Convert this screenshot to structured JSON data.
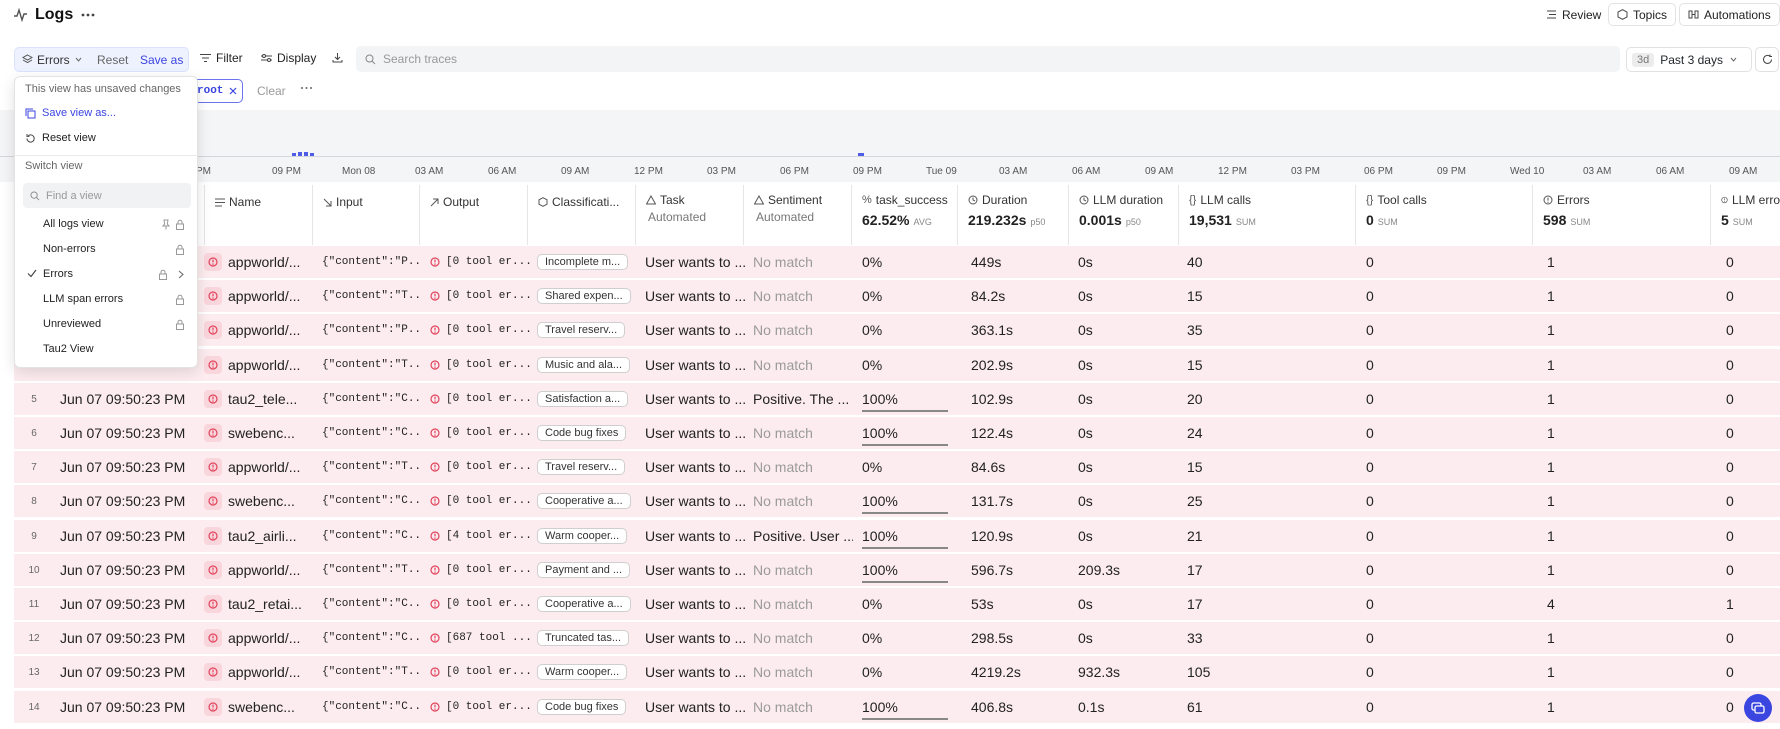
{
  "header": {
    "title": "Logs",
    "review": "Review",
    "topics": "Topics",
    "automations": "Automations"
  },
  "toolbar": {
    "view_name": "Errors",
    "reset": "Reset",
    "save_as": "Save as",
    "filter": "Filter",
    "display": "Display",
    "search_placeholder": "Search traces",
    "range_badge": "3d",
    "range_label": "Past 3 days"
  },
  "filter_row": {
    "chip": "root",
    "clear": "Clear"
  },
  "timeline": {
    "labels": [
      "PM",
      "09 PM",
      "Mon 08",
      "03 AM",
      "06 AM",
      "09 AM",
      "12 PM",
      "03 PM",
      "06 PM",
      "09 PM",
      "Tue 09",
      "03 AM",
      "06 AM",
      "09 AM",
      "12 PM",
      "03 PM",
      "06 PM",
      "09 PM",
      "Wed 10",
      "03 AM",
      "06 AM",
      "09 AM"
    ]
  },
  "views_menu": {
    "unsaved_note": "This view has unsaved changes",
    "save_view_as": "Save view as...",
    "reset_view": "Reset view",
    "switch_view": "Switch view",
    "find_placeholder": "Find a view",
    "views": [
      "All logs view",
      "Non-errors",
      "Errors",
      "LLM span errors",
      "Unreviewed",
      "Tau2 View"
    ]
  },
  "columns": {
    "name": "Name",
    "input": "Input",
    "output": "Output",
    "classification": "Classificati...",
    "task": "Task",
    "task_sub": "Automated",
    "sentiment": "Sentiment",
    "sentiment_sub": "Automated",
    "task_success": "task_success",
    "task_success_agg": "62.52%",
    "task_success_agg_unit": "AVG",
    "duration": "Duration",
    "duration_agg": "219.232s",
    "duration_agg_unit": "p50",
    "llm_duration": "LLM duration",
    "llm_duration_agg": "0.001s",
    "llm_duration_agg_unit": "p50",
    "llm_calls": "LLM calls",
    "llm_calls_agg": "19,531",
    "llm_calls_agg_unit": "SUM",
    "tool_calls": "Tool calls",
    "tool_calls_agg": "0",
    "tool_calls_agg_unit": "SUM",
    "errors": "Errors",
    "errors_agg": "598",
    "errors_agg_unit": "SUM",
    "llm_errors": "LLM erro",
    "llm_errors_agg": "5",
    "llm_errors_agg_unit": "SUM"
  },
  "rows": [
    {
      "idx": "",
      "time": "",
      "name": "appworld/...",
      "input": "{\"content\":\"P...",
      "output": "[0 tool er...",
      "cls": "Incomplete m...",
      "task": "User wants to ...",
      "sentiment": "No match",
      "success": "0%",
      "success_frac": 0,
      "duration": "449s",
      "llm_duration": "0s",
      "llm_calls": "40",
      "tool_calls": "0",
      "errors": "1",
      "llm_errors": "0"
    },
    {
      "idx": "",
      "time": "",
      "name": "appworld/...",
      "input": "{\"content\":\"T...",
      "output": "[0 tool er...",
      "cls": "Shared expen...",
      "task": "User wants to ...",
      "sentiment": "No match",
      "success": "0%",
      "success_frac": 0,
      "duration": "84.2s",
      "llm_duration": "0s",
      "llm_calls": "15",
      "tool_calls": "0",
      "errors": "1",
      "llm_errors": "0"
    },
    {
      "idx": "",
      "time": "",
      "name": "appworld/...",
      "input": "{\"content\":\"P...",
      "output": "[0 tool er...",
      "cls": "Travel reserv...",
      "task": "User wants to ...",
      "sentiment": "No match",
      "success": "0%",
      "success_frac": 0,
      "duration": "363.1s",
      "llm_duration": "0s",
      "llm_calls": "35",
      "tool_calls": "0",
      "errors": "1",
      "llm_errors": "0"
    },
    {
      "idx": "",
      "time": "",
      "name": "appworld/...",
      "input": "{\"content\":\"T...",
      "output": "[0 tool er...",
      "cls": "Music and ala...",
      "task": "User wants to ...",
      "sentiment": "No match",
      "success": "0%",
      "success_frac": 0,
      "duration": "202.9s",
      "llm_duration": "0s",
      "llm_calls": "15",
      "tool_calls": "0",
      "errors": "1",
      "llm_errors": "0"
    },
    {
      "idx": "5",
      "time": "Jun 07 09:50:23 PM",
      "name": "tau2_tele...",
      "input": "{\"content\":\"C...",
      "output": "[0 tool er...",
      "cls": "Satisfaction a...",
      "task": "User wants to ...",
      "sentiment": "Positive. The ...",
      "success": "100%",
      "success_frac": 1,
      "duration": "102.9s",
      "llm_duration": "0s",
      "llm_calls": "20",
      "tool_calls": "0",
      "errors": "1",
      "llm_errors": "0"
    },
    {
      "idx": "6",
      "time": "Jun 07 09:50:23 PM",
      "name": "swebenc...",
      "input": "{\"content\":\"C...",
      "output": "[0 tool er...",
      "cls": "Code bug fixes",
      "task": "User wants to ...",
      "sentiment": "No match",
      "success": "100%",
      "success_frac": 1,
      "duration": "122.4s",
      "llm_duration": "0s",
      "llm_calls": "24",
      "tool_calls": "0",
      "errors": "1",
      "llm_errors": "0"
    },
    {
      "idx": "7",
      "time": "Jun 07 09:50:23 PM",
      "name": "appworld/...",
      "input": "{\"content\":\"T...",
      "output": "[0 tool er...",
      "cls": "Travel reserv...",
      "task": "User wants to ...",
      "sentiment": "No match",
      "success": "0%",
      "success_frac": 0,
      "duration": "84.6s",
      "llm_duration": "0s",
      "llm_calls": "15",
      "tool_calls": "0",
      "errors": "1",
      "llm_errors": "0"
    },
    {
      "idx": "8",
      "time": "Jun 07 09:50:23 PM",
      "name": "swebenc...",
      "input": "{\"content\":\"C...",
      "output": "[0 tool er...",
      "cls": "Cooperative a...",
      "task": "User wants to ...",
      "sentiment": "No match",
      "success": "100%",
      "success_frac": 1,
      "duration": "131.7s",
      "llm_duration": "0s",
      "llm_calls": "25",
      "tool_calls": "0",
      "errors": "1",
      "llm_errors": "0"
    },
    {
      "idx": "9",
      "time": "Jun 07 09:50:23 PM",
      "name": "tau2_airli...",
      "input": "{\"content\":\"C...",
      "output": "[4 tool er...",
      "cls": "Warm cooper...",
      "task": "User wants to ...",
      "sentiment": "Positive. User ...",
      "success": "100%",
      "success_frac": 1,
      "duration": "120.9s",
      "llm_duration": "0s",
      "llm_calls": "21",
      "tool_calls": "0",
      "errors": "1",
      "llm_errors": "0"
    },
    {
      "idx": "10",
      "time": "Jun 07 09:50:23 PM",
      "name": "appworld/...",
      "input": "{\"content\":\"T...",
      "output": "[0 tool er...",
      "cls": "Payment and ...",
      "task": "User wants to ...",
      "sentiment": "No match",
      "success": "100%",
      "success_frac": 1,
      "duration": "596.7s",
      "llm_duration": "209.3s",
      "llm_calls": "17",
      "tool_calls": "0",
      "errors": "1",
      "llm_errors": "0"
    },
    {
      "idx": "11",
      "time": "Jun 07 09:50:23 PM",
      "name": "tau2_retai...",
      "input": "{\"content\":\"C...",
      "output": "[0 tool er...",
      "cls": "Cooperative a...",
      "task": "User wants to ...",
      "sentiment": "No match",
      "success": "0%",
      "success_frac": 0,
      "duration": "53s",
      "llm_duration": "0s",
      "llm_calls": "17",
      "tool_calls": "0",
      "errors": "4",
      "llm_errors": "1"
    },
    {
      "idx": "12",
      "time": "Jun 07 09:50:23 PM",
      "name": "appworld/...",
      "input": "{\"content\":\"C...",
      "output": "[687 tool ...",
      "cls": "Truncated tas...",
      "task": "User wants to ...",
      "sentiment": "No match",
      "success": "0%",
      "success_frac": 0,
      "duration": "298.5s",
      "llm_duration": "0s",
      "llm_calls": "33",
      "tool_calls": "0",
      "errors": "1",
      "llm_errors": "0"
    },
    {
      "idx": "13",
      "time": "Jun 07 09:50:23 PM",
      "name": "appworld/...",
      "input": "{\"content\":\"T...",
      "output": "[0 tool er...",
      "cls": "Warm cooper...",
      "task": "User wants to ...",
      "sentiment": "No match",
      "success": "0%",
      "success_frac": 0,
      "duration": "4219.2s",
      "llm_duration": "932.3s",
      "llm_calls": "105",
      "tool_calls": "0",
      "errors": "1",
      "llm_errors": "0"
    },
    {
      "idx": "14",
      "time": "Jun 07 09:50:23 PM",
      "name": "swebenc...",
      "input": "{\"content\":\"C...",
      "output": "[0 tool er...",
      "cls": "Code bug fixes",
      "task": "User wants to ...",
      "sentiment": "No match",
      "success": "100%",
      "success_frac": 1,
      "duration": "406.8s",
      "llm_duration": "0.1s",
      "llm_calls": "61",
      "tool_calls": "0",
      "errors": "1",
      "llm_errors": "0"
    }
  ],
  "colors": {
    "accent": "#3b45e0",
    "row_error_bg": "#fcecef",
    "error_icon": "#e0435b"
  }
}
